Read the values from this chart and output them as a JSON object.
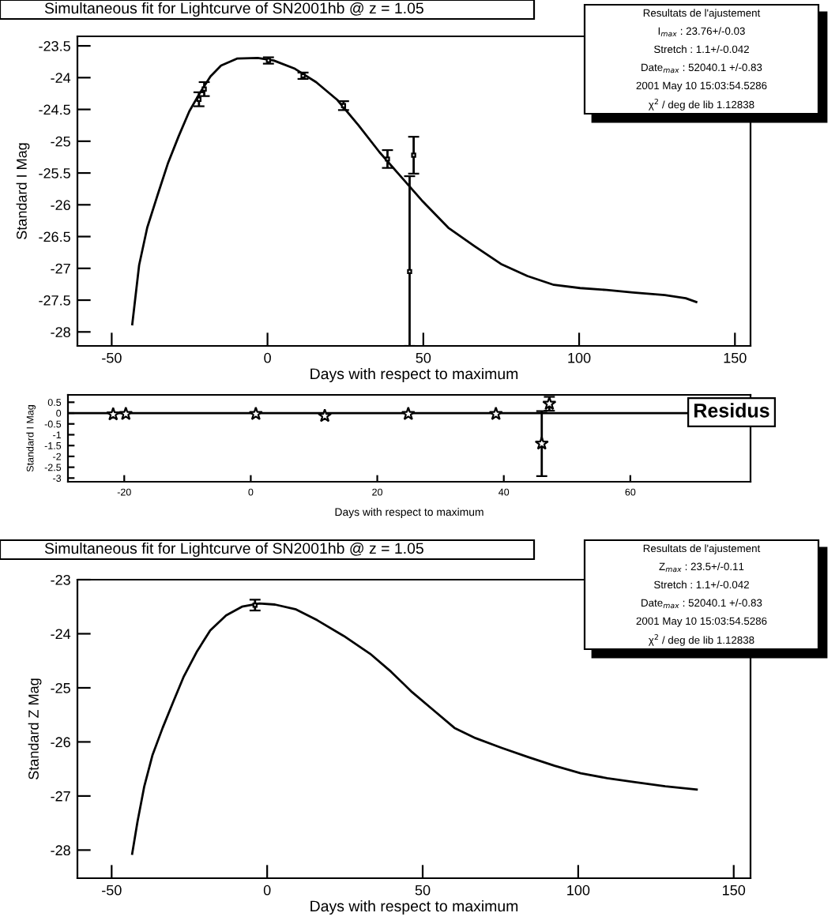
{
  "chart_data": [
    {
      "type": "line",
      "title": "Simultaneous fit for Lightcurve of SN2001hb @ z = 1.05",
      "xlabel": "Days with respect to maximum",
      "ylabel": "Standard I Mag",
      "annotations": [
        "Resultats de l'ajustement",
        "I$_{max}$ : 23.76+/-0.03",
        "Stretch : 1.1+/-0.042",
        "Date$_{max}$ : 52040.1 +/-0.83",
        "2001 May 10 15:03:54.5286",
        "χ$^{2}$ / deg de lib 1.12838"
      ],
      "xlim": [
        -61,
        155
      ],
      "xticks": [
        -50,
        0,
        50,
        100,
        150
      ],
      "ylim": [
        -28.22,
        -23.35
      ],
      "yticks": [
        -28,
        -27.5,
        -27,
        -26.5,
        -26,
        -25.5,
        -25,
        -24.5,
        -24,
        -23.5
      ],
      "series": [
        {
          "color": "#000000",
          "x": [
            -43.4,
            -41.2,
            -38.6,
            -35.3,
            -31.9,
            -28.5,
            -25.1,
            -21.7,
            -18.3,
            -14.9,
            -9.8,
            -3.1,
            2.0,
            8.8,
            15.6,
            22.4,
            29.2,
            35.9,
            42.7,
            49.5,
            58.0,
            66.4,
            74.9,
            83.4,
            91.9,
            100.3,
            108.8,
            117.3,
            127.5,
            134.2,
            137.6
          ],
          "values": [
            -27.88,
            -26.95,
            -26.36,
            -25.85,
            -25.34,
            -24.92,
            -24.53,
            -24.24,
            -23.98,
            -23.81,
            -23.7,
            -23.69,
            -23.73,
            -23.86,
            -24.07,
            -24.35,
            -24.75,
            -25.17,
            -25.55,
            -25.93,
            -26.36,
            -26.65,
            -26.93,
            -27.12,
            -27.26,
            -27.31,
            -27.34,
            -27.38,
            -27.42,
            -27.47,
            -27.53
          ]
        },
        {
          "type": "scatter",
          "marker": "square",
          "color": "#000000",
          "x": [
            -22.0,
            -20.3,
            0.3,
            11.4,
            24.4,
            38.5,
            46.9,
            45.6
          ],
          "values": [
            -24.34,
            -24.18,
            -23.73,
            -23.97,
            -24.44,
            -25.28,
            -25.22,
            -27.05
          ],
          "errors": [
            0.11,
            0.11,
            0.05,
            0.05,
            0.07,
            0.14,
            0.29,
            [
              -28.22,
              -25.55
            ]
          ]
        }
      ]
    },
    {
      "type": "scatter",
      "xlabel": "Days with respect to maximum",
      "ylabel": "Standard I Mag",
      "annotations": [
        "Residus"
      ],
      "xlim": [
        -28.9,
        79
      ],
      "xticks": [
        -20,
        0,
        20,
        40,
        60
      ],
      "ylim": [
        -3.17,
        0.84
      ],
      "yticks": [
        {
          "value": -3,
          "label": "-3"
        },
        {
          "value": -2.5,
          "label": "-2.5"
        },
        {
          "value": -2,
          "label": "-2"
        },
        {
          "value": -1.5,
          "label": "-1.5"
        },
        {
          "value": -1,
          "label": "-1"
        },
        {
          "value": -0.5,
          "label": "-0.5"
        },
        {
          "value": 0,
          "label": "0"
        },
        {
          "value": 0.5,
          "label": "0.5"
        }
      ],
      "ref_lines": [
        {
          "axis": "y",
          "value": 0,
          "color": "#000000"
        }
      ],
      "series": [
        {
          "marker": "star",
          "color": "#000000",
          "x": [
            -21.75,
            -19.75,
            0.8,
            11.7,
            24.9,
            38.75,
            47.2,
            46.0
          ],
          "values": [
            -0.06,
            -0.04,
            -0.04,
            -0.13,
            -0.04,
            -0.04,
            0.43,
            -1.41
          ],
          "errors": [
            null,
            null,
            null,
            null,
            null,
            null,
            0.32,
            1.5
          ]
        }
      ]
    },
    {
      "type": "line",
      "title": "Simultaneous fit for Lightcurve of SN2001hb @ z = 1.05",
      "xlabel": "Days with respect to maximum",
      "ylabel": "Standard Z Mag",
      "annotations": [
        "Resultats de l'ajustement",
        "Z$_{max}$ : 23.5+/-0.11",
        "Stretch : 1.1+/-0.042",
        "Date$_{max}$ : 52040.1 +/-0.83",
        "2001 May 10 15:03:54.5286",
        "χ$^{2}$ / deg de lib 1.12838"
      ],
      "xlim": [
        -61,
        155.4
      ],
      "xticks": [
        -50,
        0,
        50,
        100,
        150
      ],
      "ylim": [
        -28.52,
        -23
      ],
      "yticks": [
        -28,
        -27,
        -26,
        -25,
        -24,
        -23
      ],
      "series": [
        {
          "color": "#000000",
          "x": [
            -43.4,
            -41.7,
            -39.5,
            -36.9,
            -33.6,
            -30.2,
            -26.8,
            -22.5,
            -18.3,
            -13.2,
            -8.1,
            -2.5,
            2.5,
            9.3,
            16.1,
            24.6,
            33.1,
            39.8,
            46.6,
            53.4,
            60.2,
            67.0,
            75.4,
            83.9,
            92.4,
            100.8,
            109.3,
            117.8,
            128.0,
            138.1
          ],
          "values": [
            -28.07,
            -27.48,
            -26.82,
            -26.25,
            -25.74,
            -25.26,
            -24.79,
            -24.32,
            -23.94,
            -23.66,
            -23.5,
            -23.44,
            -23.46,
            -23.55,
            -23.75,
            -24.04,
            -24.37,
            -24.7,
            -25.08,
            -25.41,
            -25.74,
            -25.93,
            -26.11,
            -26.28,
            -26.44,
            -26.58,
            -26.67,
            -26.74,
            -26.82,
            -26.88
          ]
        },
        {
          "type": "scatter",
          "marker": "square",
          "color": "#000000",
          "x": [
            -3.9
          ],
          "values": [
            -23.47
          ],
          "errors": [
            0.1
          ]
        }
      ]
    }
  ]
}
